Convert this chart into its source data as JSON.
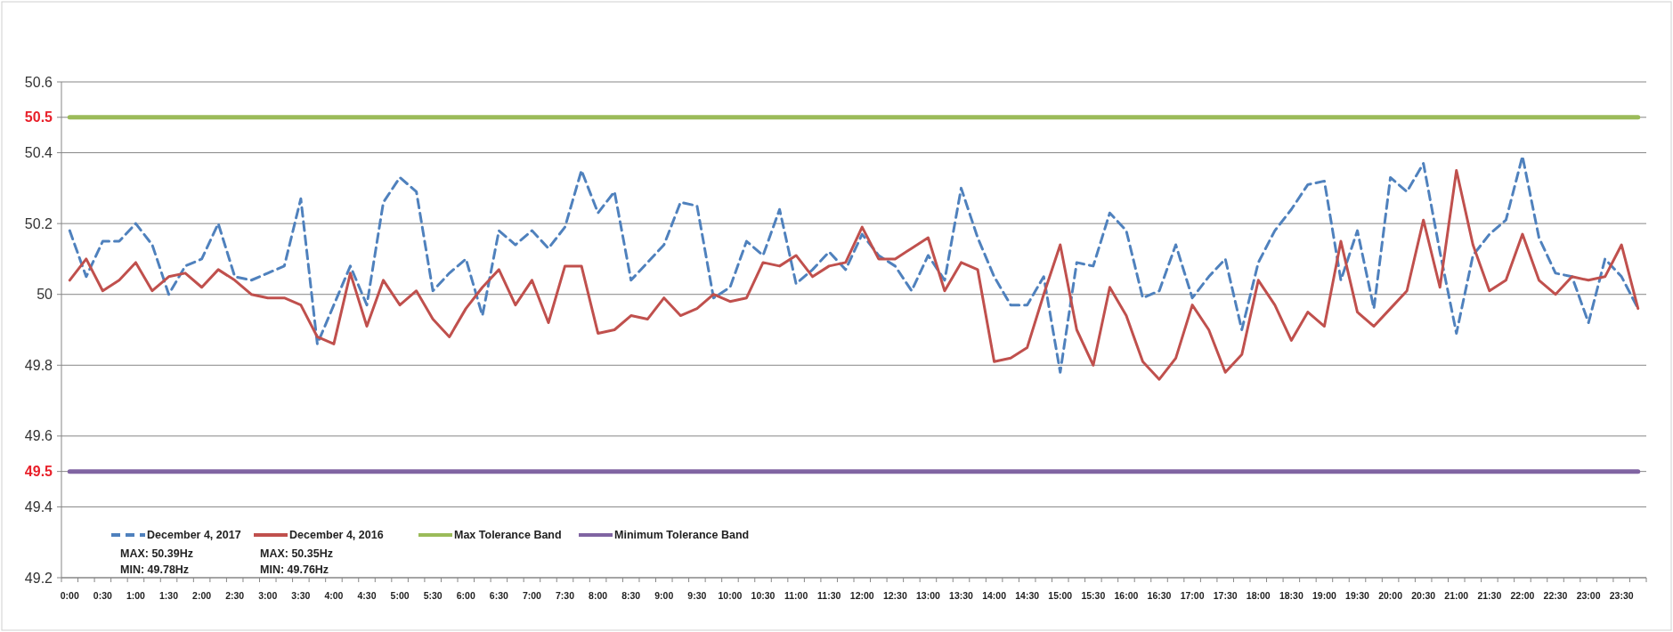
{
  "chart_data": {
    "type": "line",
    "categories": [
      "0:00",
      null,
      "0:30",
      null,
      "1:00",
      null,
      "1:30",
      null,
      "2:00",
      null,
      "2:30",
      null,
      "3:00",
      null,
      "3:30",
      null,
      "4:00",
      null,
      "4:30",
      null,
      "5:00",
      null,
      "5:30",
      null,
      "6:00",
      null,
      "6:30",
      null,
      "7:00",
      null,
      "7:30",
      null,
      "8:00",
      null,
      "8:30",
      null,
      "9:00",
      null,
      "9:30",
      null,
      "10:00",
      null,
      "10:30",
      null,
      "11:00",
      null,
      "11:30",
      null,
      "12:00",
      null,
      "12:30",
      null,
      "13:00",
      null,
      "13:30",
      null,
      "14:00",
      null,
      "14:30",
      null,
      "15:00",
      null,
      "15:30",
      null,
      "16:00",
      null,
      "16:30",
      null,
      "17:00",
      null,
      "17:30",
      null,
      "18:00",
      null,
      "18:30",
      null,
      "19:00",
      null,
      "19:30",
      null,
      "20:00",
      null,
      "20:30",
      null,
      "21:00",
      null,
      "21:30",
      null,
      "22:00",
      null,
      "22:30",
      null,
      "23:00",
      null,
      "23:30",
      null
    ],
    "series": [
      {
        "name": "December 4, 2017",
        "color": "#4f81bd",
        "line_style": "dashed",
        "values": [
          50.18,
          50.05,
          50.15,
          50.15,
          50.2,
          50.14,
          50.0,
          50.08,
          50.1,
          50.2,
          50.05,
          50.04,
          50.06,
          50.08,
          50.27,
          49.86,
          49.97,
          50.08,
          49.97,
          50.26,
          50.33,
          50.29,
          50.01,
          50.06,
          50.1,
          49.94,
          50.18,
          50.14,
          50.18,
          50.13,
          50.19,
          50.35,
          50.23,
          50.29,
          50.04,
          50.09,
          50.14,
          50.26,
          50.25,
          49.99,
          50.02,
          50.15,
          50.11,
          50.24,
          50.03,
          50.07,
          50.12,
          50.07,
          50.17,
          50.11,
          50.08,
          50.01,
          50.11,
          50.04,
          50.3,
          50.16,
          50.05,
          49.97,
          49.97,
          50.05,
          49.78,
          50.09,
          50.08,
          50.23,
          50.18,
          49.99,
          50.01,
          50.14,
          49.99,
          50.05,
          50.1,
          49.9,
          50.09,
          50.18,
          50.24,
          50.31,
          50.32,
          50.04,
          50.18,
          49.96,
          50.33,
          50.29,
          50.37,
          50.12,
          49.89,
          50.11,
          50.17,
          50.21,
          50.39,
          50.16,
          50.06,
          50.05,
          49.92,
          50.1,
          50.05,
          49.96
        ]
      },
      {
        "name": "December 4, 2016",
        "color": "#c0504d",
        "line_style": "solid",
        "values": [
          50.04,
          50.1,
          50.01,
          50.04,
          50.09,
          50.01,
          50.05,
          50.06,
          50.02,
          50.07,
          50.04,
          50.0,
          49.99,
          49.99,
          49.97,
          49.88,
          49.86,
          50.06,
          49.91,
          50.04,
          49.97,
          50.01,
          49.93,
          49.88,
          49.96,
          50.02,
          50.07,
          49.97,
          50.04,
          49.92,
          50.08,
          50.08,
          49.89,
          49.9,
          49.94,
          49.93,
          49.99,
          49.94,
          49.96,
          50.0,
          49.98,
          49.99,
          50.09,
          50.08,
          50.11,
          50.05,
          50.08,
          50.09,
          50.19,
          50.1,
          50.1,
          50.13,
          50.16,
          50.01,
          50.09,
          50.07,
          49.81,
          49.82,
          49.85,
          50.0,
          50.14,
          49.9,
          49.8,
          50.02,
          49.94,
          49.81,
          49.76,
          49.82,
          49.97,
          49.9,
          49.78,
          49.83,
          50.04,
          49.97,
          49.87,
          49.95,
          49.91,
          50.15,
          49.95,
          49.91,
          49.96,
          50.01,
          50.21,
          50.02,
          50.35,
          50.14,
          50.01,
          50.04,
          50.17,
          50.04,
          50.0,
          50.05,
          50.04,
          50.05,
          50.14,
          49.96
        ]
      },
      {
        "name": "Max Tolerance Band",
        "color": "#9bbb59",
        "line_style": "solid",
        "values": [
          50.5,
          50.5,
          50.5,
          50.5,
          50.5,
          50.5,
          50.5,
          50.5,
          50.5,
          50.5,
          50.5,
          50.5,
          50.5,
          50.5,
          50.5,
          50.5,
          50.5,
          50.5,
          50.5,
          50.5,
          50.5,
          50.5,
          50.5,
          50.5,
          50.5,
          50.5,
          50.5,
          50.5,
          50.5,
          50.5,
          50.5,
          50.5,
          50.5,
          50.5,
          50.5,
          50.5,
          50.5,
          50.5,
          50.5,
          50.5,
          50.5,
          50.5,
          50.5,
          50.5,
          50.5,
          50.5,
          50.5,
          50.5,
          50.5,
          50.5,
          50.5,
          50.5,
          50.5,
          50.5,
          50.5,
          50.5,
          50.5,
          50.5,
          50.5,
          50.5,
          50.5,
          50.5,
          50.5,
          50.5,
          50.5,
          50.5,
          50.5,
          50.5,
          50.5,
          50.5,
          50.5,
          50.5,
          50.5,
          50.5,
          50.5,
          50.5,
          50.5,
          50.5,
          50.5,
          50.5,
          50.5,
          50.5,
          50.5,
          50.5,
          50.5,
          50.5,
          50.5,
          50.5,
          50.5,
          50.5,
          50.5,
          50.5,
          50.5,
          50.5,
          50.5,
          50.5
        ]
      },
      {
        "name": "Minimum Tolerance Band",
        "color": "#8064a2",
        "line_style": "solid",
        "values": [
          49.5,
          49.5,
          49.5,
          49.5,
          49.5,
          49.5,
          49.5,
          49.5,
          49.5,
          49.5,
          49.5,
          49.5,
          49.5,
          49.5,
          49.5,
          49.5,
          49.5,
          49.5,
          49.5,
          49.5,
          49.5,
          49.5,
          49.5,
          49.5,
          49.5,
          49.5,
          49.5,
          49.5,
          49.5,
          49.5,
          49.5,
          49.5,
          49.5,
          49.5,
          49.5,
          49.5,
          49.5,
          49.5,
          49.5,
          49.5,
          49.5,
          49.5,
          49.5,
          49.5,
          49.5,
          49.5,
          49.5,
          49.5,
          49.5,
          49.5,
          49.5,
          49.5,
          49.5,
          49.5,
          49.5,
          49.5,
          49.5,
          49.5,
          49.5,
          49.5,
          49.5,
          49.5,
          49.5,
          49.5,
          49.5,
          49.5,
          49.5,
          49.5,
          49.5,
          49.5,
          49.5,
          49.5,
          49.5,
          49.5,
          49.5,
          49.5,
          49.5,
          49.5,
          49.5,
          49.5,
          49.5,
          49.5,
          49.5,
          49.5,
          49.5,
          49.5,
          49.5,
          49.5,
          49.5,
          49.5,
          49.5,
          49.5,
          49.5,
          49.5,
          49.5,
          49.5
        ]
      }
    ],
    "ylim": [
      49.2,
      50.6
    ],
    "yticks": [
      49.2,
      49.4,
      49.5,
      49.6,
      49.8,
      {
        "value": 50,
        "label": "50"
      },
      50.2,
      50.4,
      50.5,
      50.6
    ],
    "grid": "y",
    "legend": "bottom left",
    "annotations": [
      "MAX: 50.39Hz",
      "MIN: 49.78Hz",
      "MAX: 50.35Hz",
      "MIN: 49.76Hz"
    ]
  }
}
